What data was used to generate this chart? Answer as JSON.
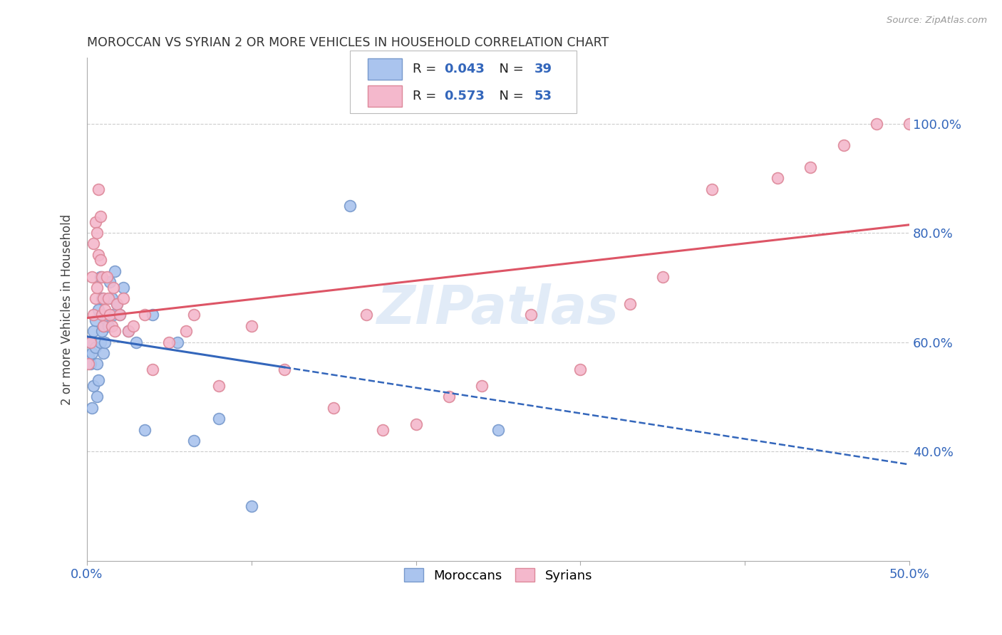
{
  "title": "MOROCCAN VS SYRIAN 2 OR MORE VEHICLES IN HOUSEHOLD CORRELATION CHART",
  "source": "Source: ZipAtlas.com",
  "ylabel": "2 or more Vehicles in Household",
  "xlim": [
    0.0,
    0.5
  ],
  "ylim": [
    0.2,
    1.12
  ],
  "xtick_vals": [
    0.0,
    0.1,
    0.2,
    0.3,
    0.4,
    0.5
  ],
  "xtick_labels_show": [
    "0.0%",
    "",
    "",
    "",
    "",
    "50.0%"
  ],
  "ytick_vals": [
    0.4,
    0.6,
    0.8,
    1.0
  ],
  "ytick_labels": [
    "40.0%",
    "60.0%",
    "80.0%",
    "100.0%"
  ],
  "moroccan_color": "#aac4ee",
  "syrian_color": "#f4b8cc",
  "moroccan_edge": "#7799cc",
  "syrian_edge": "#dd8899",
  "trendline_moroccan_color": "#3366bb",
  "trendline_syrian_color": "#dd5566",
  "R_moroccan": 0.043,
  "N_moroccan": 39,
  "R_syrian": 0.573,
  "N_syrian": 53,
  "watermark": "ZIPatlas",
  "moroccan_x": [
    0.001,
    0.002,
    0.002,
    0.003,
    0.003,
    0.004,
    0.004,
    0.005,
    0.005,
    0.006,
    0.006,
    0.007,
    0.007,
    0.008,
    0.008,
    0.009,
    0.009,
    0.01,
    0.01,
    0.011,
    0.012,
    0.013,
    0.014,
    0.015,
    0.016,
    0.017,
    0.018,
    0.02,
    0.022,
    0.025,
    0.03,
    0.035,
    0.04,
    0.055,
    0.065,
    0.08,
    0.1,
    0.16,
    0.25
  ],
  "moroccan_y": [
    0.575,
    0.56,
    0.6,
    0.58,
    0.48,
    0.52,
    0.62,
    0.59,
    0.64,
    0.5,
    0.56,
    0.66,
    0.53,
    0.6,
    0.72,
    0.62,
    0.68,
    0.63,
    0.58,
    0.6,
    0.64,
    0.63,
    0.71,
    0.68,
    0.65,
    0.73,
    0.67,
    0.65,
    0.7,
    0.62,
    0.6,
    0.44,
    0.65,
    0.6,
    0.42,
    0.46,
    0.3,
    0.85,
    0.44
  ],
  "syrian_x": [
    0.001,
    0.002,
    0.003,
    0.004,
    0.004,
    0.005,
    0.005,
    0.006,
    0.006,
    0.007,
    0.007,
    0.008,
    0.008,
    0.009,
    0.009,
    0.01,
    0.01,
    0.011,
    0.012,
    0.013,
    0.014,
    0.015,
    0.016,
    0.017,
    0.018,
    0.02,
    0.022,
    0.025,
    0.028,
    0.035,
    0.04,
    0.05,
    0.06,
    0.065,
    0.08,
    0.1,
    0.12,
    0.15,
    0.17,
    0.18,
    0.2,
    0.22,
    0.24,
    0.27,
    0.3,
    0.33,
    0.35,
    0.38,
    0.42,
    0.44,
    0.46,
    0.48,
    0.5
  ],
  "syrian_y": [
    0.56,
    0.6,
    0.72,
    0.65,
    0.78,
    0.68,
    0.82,
    0.8,
    0.7,
    0.88,
    0.76,
    0.75,
    0.83,
    0.72,
    0.65,
    0.63,
    0.68,
    0.66,
    0.72,
    0.68,
    0.65,
    0.63,
    0.7,
    0.62,
    0.67,
    0.65,
    0.68,
    0.62,
    0.63,
    0.65,
    0.55,
    0.6,
    0.62,
    0.65,
    0.52,
    0.63,
    0.55,
    0.48,
    0.65,
    0.44,
    0.45,
    0.5,
    0.52,
    0.65,
    0.55,
    0.67,
    0.72,
    0.88,
    0.9,
    0.92,
    0.96,
    1.0,
    1.0
  ]
}
